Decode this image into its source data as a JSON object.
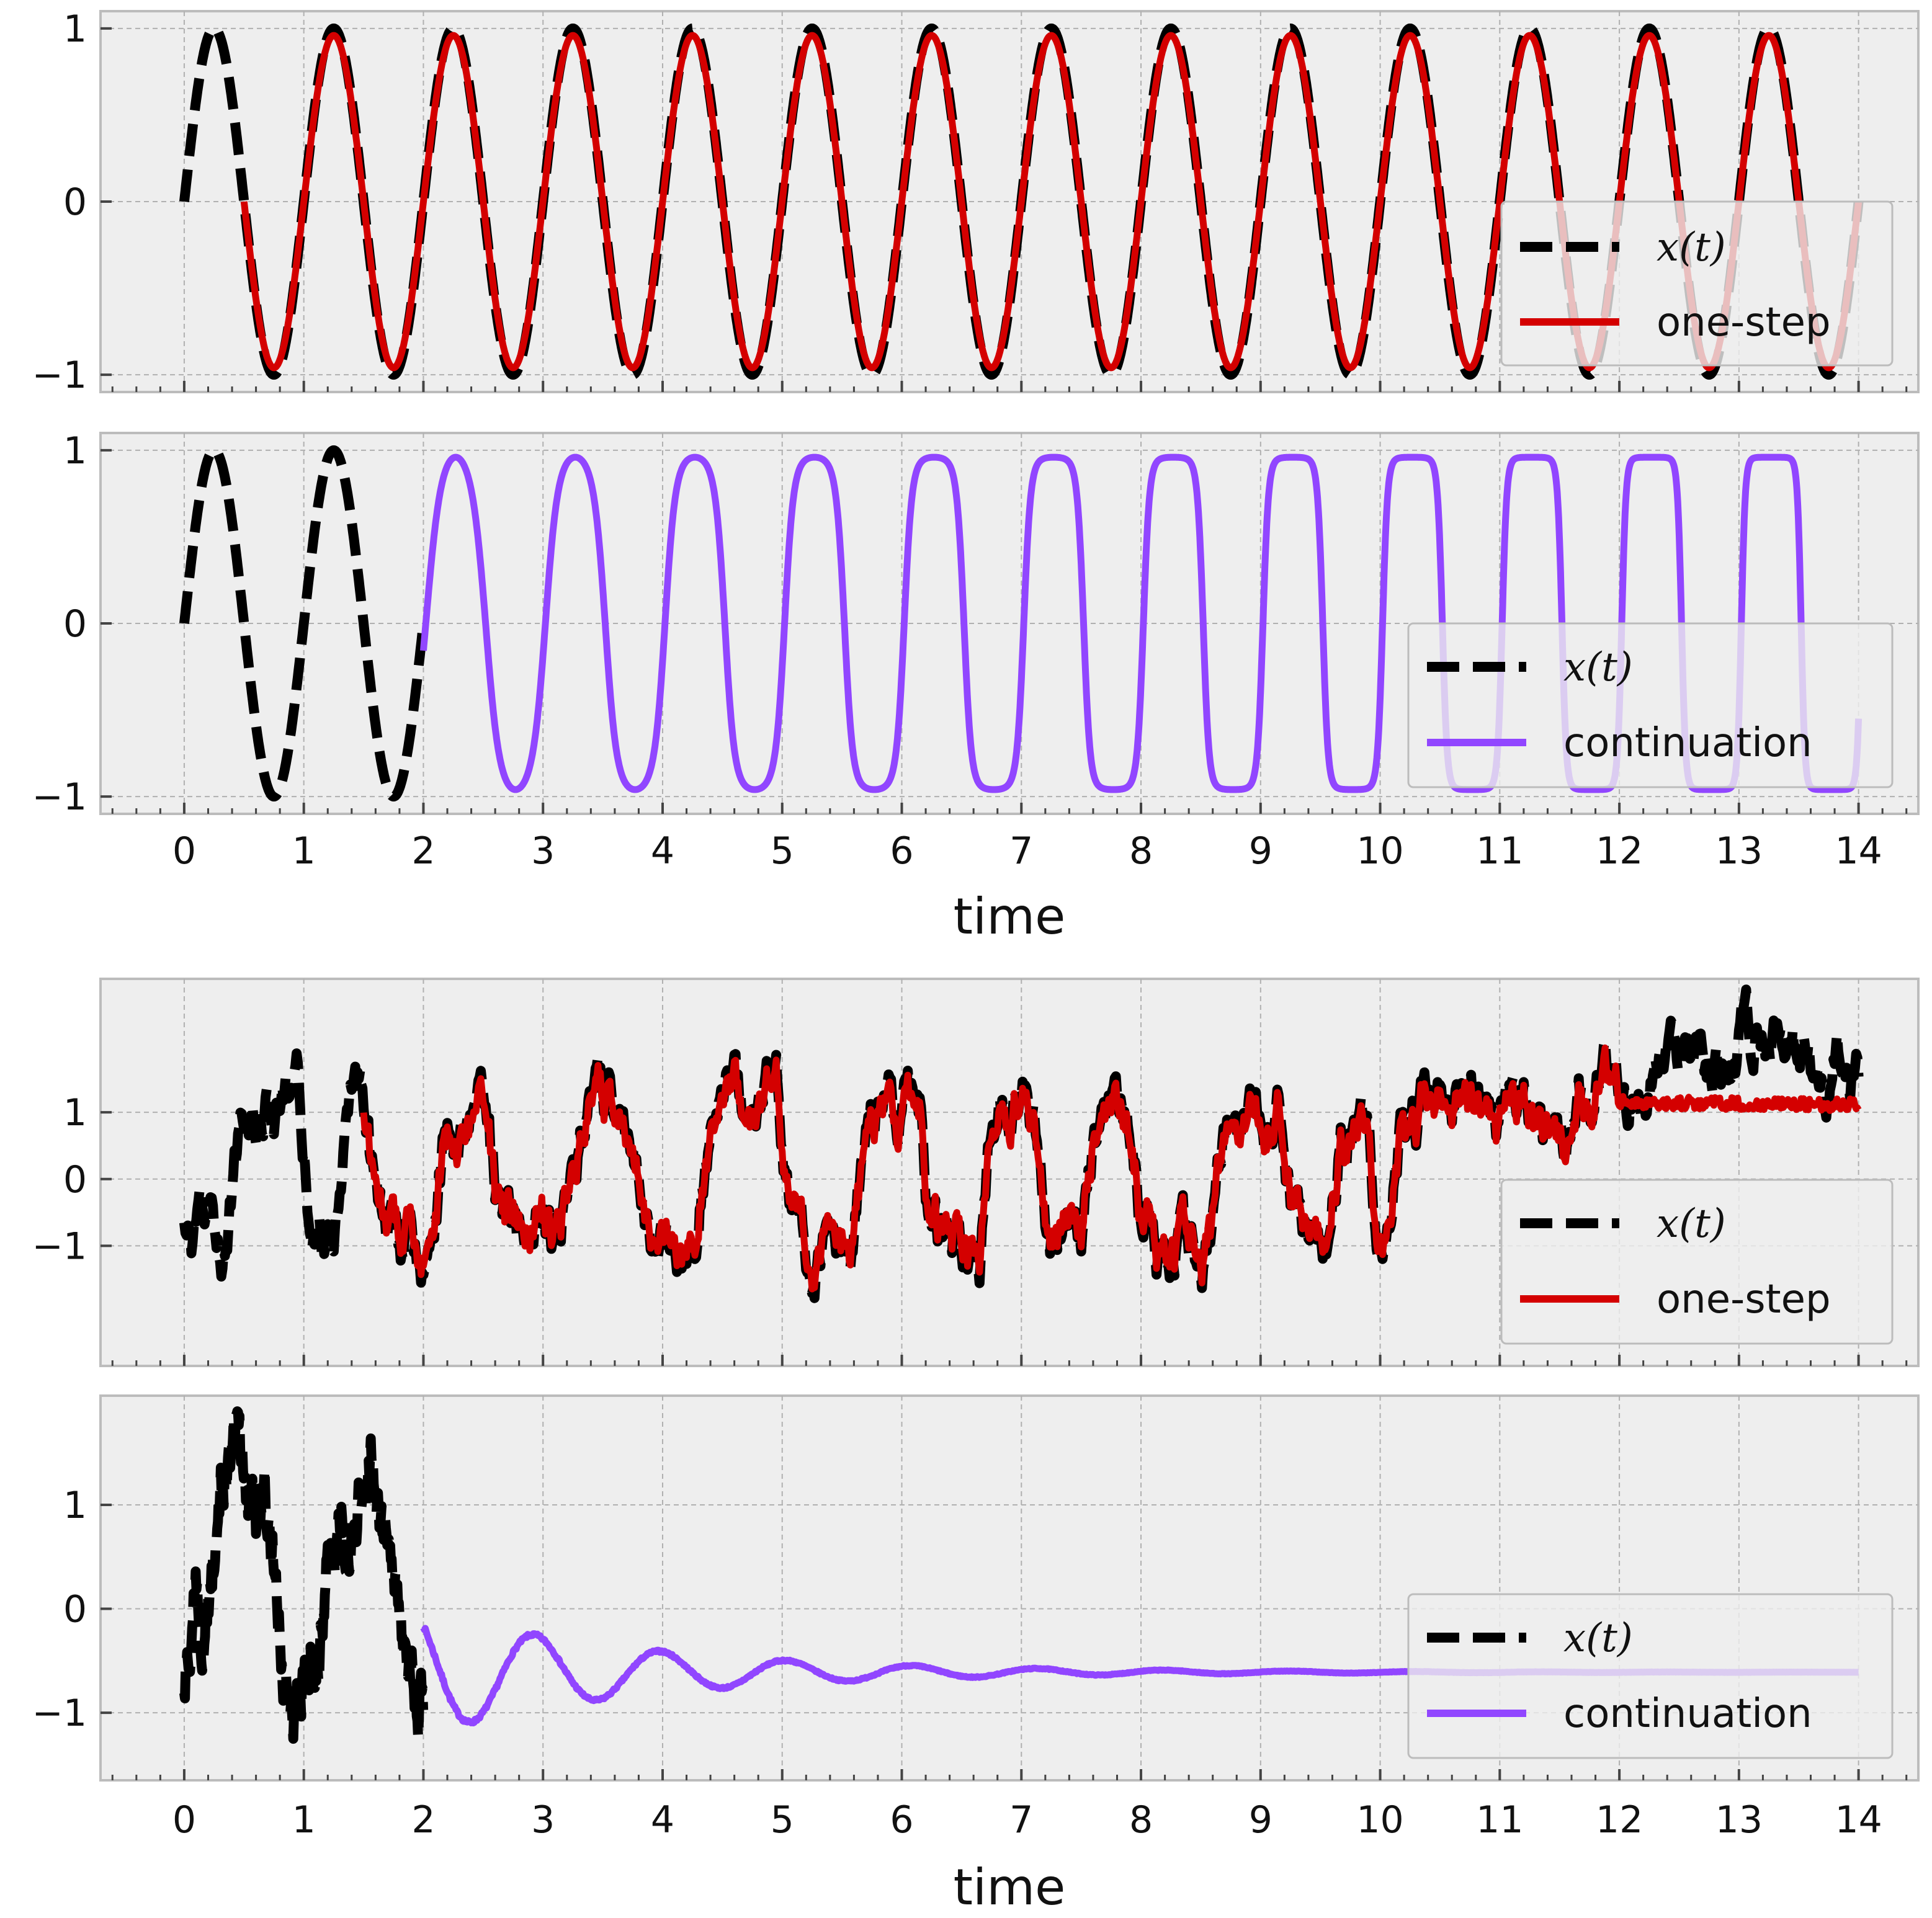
{
  "colors": {
    "panel_background": "#eeeeee",
    "frame": "#bcbcbc",
    "grid": "#b0b0b0",
    "truth": "#000000",
    "one_step": "#d40000",
    "continuation": "#9146ff",
    "legend_background": "#eeeeee"
  },
  "xlabel": "time",
  "x_ticks": [
    "0",
    "1",
    "2",
    "3",
    "4",
    "5",
    "6",
    "7",
    "8",
    "9",
    "10",
    "11",
    "12",
    "13",
    "14"
  ],
  "chart_data": [
    {
      "type": "line",
      "title": "",
      "xlabel": "",
      "ylabel": "",
      "xlim": [
        -0.7,
        14.5
      ],
      "ylim": [
        -1.1,
        1.1
      ],
      "y_ticks": [
        "1",
        "0",
        "−1"
      ],
      "y_tick_values": [
        1,
        0,
        -1
      ],
      "grid": true,
      "legend_placement": "lower-right",
      "legend": [
        "x(t)",
        "one-step"
      ],
      "series": [
        {
          "name": "x(t)",
          "style": "dashed",
          "color": "#000000",
          "function": "sin(2πt)",
          "x_range": [
            0,
            14
          ]
        },
        {
          "name": "one-step",
          "style": "solid",
          "color": "#d40000",
          "function": "0.96·sin(2πt)",
          "x_range": [
            0.5,
            14
          ]
        }
      ]
    },
    {
      "type": "line",
      "title": "",
      "xlabel": "time",
      "ylabel": "",
      "xlim": [
        -0.7,
        14.5
      ],
      "ylim": [
        -1.1,
        1.1
      ],
      "y_ticks": [
        "1",
        "0",
        "−1"
      ],
      "y_tick_values": [
        1,
        0,
        -1
      ],
      "grid": true,
      "legend_placement": "lower-right",
      "legend": [
        "x(t)",
        "continuation"
      ],
      "series": [
        {
          "name": "x(t)",
          "style": "dashed",
          "color": "#000000",
          "function": "sin(2πt)",
          "x_range": [
            0,
            2
          ]
        },
        {
          "name": "continuation",
          "style": "solid",
          "color": "#9146ff",
          "function": "periodic, period 1, amplitude 0.96, increasingly squared",
          "x_range": [
            2,
            14
          ]
        }
      ]
    },
    {
      "type": "line",
      "title": "",
      "xlabel": "",
      "ylabel": "",
      "xlim": [
        -0.7,
        14.5
      ],
      "ylim": [
        -2.8,
        3.0
      ],
      "y_ticks": [
        "1",
        "0",
        "−1"
      ],
      "y_tick_values": [
        1,
        0,
        -1
      ],
      "grid": true,
      "legend_placement": "lower-right",
      "legend": [
        "x(t)",
        "one-step"
      ],
      "series": [
        {
          "name": "x(t)",
          "style": "dashed",
          "color": "#000000",
          "function": "noisy bistable signal (random walk switching near ±1, range about −2.4 to 2.8)",
          "x_range": [
            0,
            14
          ]
        },
        {
          "name": "one-step",
          "style": "solid",
          "color": "#d40000",
          "function": "tracks x(t) closely, then levels near 1.2 after t≈12",
          "x_range": [
            1.5,
            14
          ]
        }
      ]
    },
    {
      "type": "line",
      "title": "",
      "xlabel": "time",
      "ylabel": "",
      "xlim": [
        -0.7,
        14.5
      ],
      "ylim": [
        -1.65,
        2.05
      ],
      "y_ticks": [
        "1",
        "0",
        "−1"
      ],
      "y_tick_values": [
        1,
        0,
        -1
      ],
      "grid": true,
      "legend_placement": "lower-right",
      "legend": [
        "x(t)",
        "continuation"
      ],
      "series": [
        {
          "name": "x(t)",
          "style": "dashed",
          "color": "#000000",
          "function": "noisy signal between about −1.4 and 1.9",
          "x_range": [
            0,
            2
          ]
        },
        {
          "name": "continuation",
          "style": "solid",
          "color": "#9146ff",
          "function": "damped oscillation decaying to about −0.61",
          "x_range": [
            2,
            14
          ]
        }
      ]
    }
  ]
}
